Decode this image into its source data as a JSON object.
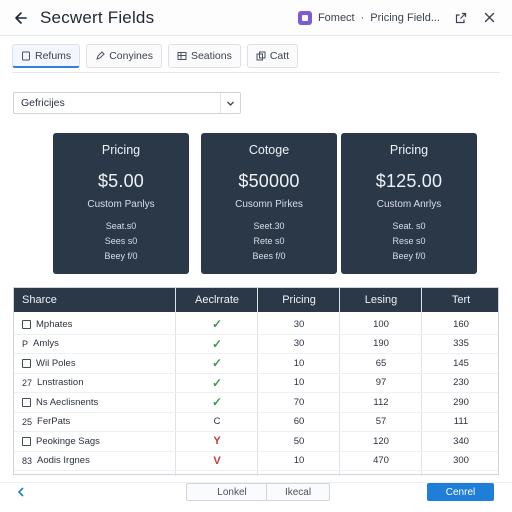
{
  "window": {
    "title": "Secwert Fields",
    "context_left": "Fomect",
    "separator": "·",
    "context_right": "Pricing Field..."
  },
  "tabs": [
    {
      "label": "Refums",
      "icon": "file-icon",
      "active": true
    },
    {
      "label": "Conyines",
      "icon": "edit-icon",
      "active": false
    },
    {
      "label": "Seations",
      "icon": "table-icon",
      "active": false
    },
    {
      "label": "Catt",
      "icon": "copy-icon",
      "active": false
    }
  ],
  "filter": {
    "value": "Gefricijes"
  },
  "cards": [
    {
      "title": "Pricing",
      "price": "$5.00",
      "subtitle": "Custom Panlys",
      "lines": [
        "Seat.s0",
        "Sees s0",
        "Beey f/0"
      ]
    },
    {
      "title": "Cotoge",
      "price": "$50000",
      "subtitle": "Cusomn Pirkes",
      "lines": [
        "Seet.30",
        "Rete s0",
        "Bees f/0"
      ]
    },
    {
      "title": "Pricing",
      "price": "$125.00",
      "subtitle": "Custom Anrlys",
      "lines": [
        "Seat. s0",
        "Rese s0",
        "Beey f/0"
      ]
    }
  ],
  "table": {
    "headers": [
      "Sharce",
      "Aeclrrate",
      "Pricing",
      "Lesing",
      "Tert"
    ],
    "rows": [
      {
        "marker": "checkbox",
        "name": "Mphates",
        "status": "✓",
        "status_type": "ok",
        "pricing": "30",
        "lesing": "100",
        "tert": "160"
      },
      {
        "marker": "P",
        "name": "Amlys",
        "status": "✓",
        "status_type": "ok",
        "pricing": "30",
        "lesing": "190",
        "tert": "335"
      },
      {
        "marker": "checkbox",
        "name": "Wil Poles",
        "status": "✓",
        "status_type": "ok",
        "pricing": "10",
        "lesing": "65",
        "tert": "145"
      },
      {
        "marker": "27",
        "name": "Lnstrastion",
        "status": "✓",
        "status_type": "ok",
        "pricing": "10",
        "lesing": "97",
        "tert": "230"
      },
      {
        "marker": "checkbox",
        "name": "Ns Aeclisnents",
        "status": "✓",
        "status_type": "ok",
        "pricing": "70",
        "lesing": "112",
        "tert": "290"
      },
      {
        "marker": "25",
        "name": "FerPats",
        "status": "C",
        "status_type": "neutral",
        "pricing": "60",
        "lesing": "57",
        "tert": "111"
      },
      {
        "marker": "checkbox",
        "name": "Peokinge Sags",
        "status": "Y",
        "status_type": "warn",
        "pricing": "50",
        "lesing": "120",
        "tert": "340"
      },
      {
        "marker": "83",
        "name": "Aodis Irgnes",
        "status": "V",
        "status_type": "warn",
        "pricing": "10",
        "lesing": "470",
        "tert": "300"
      }
    ]
  },
  "footer": {
    "prev_icon": "chevron-left-icon",
    "btn1": "Lonkel",
    "btn2": "Ikecal",
    "primary": "Cenrel"
  },
  "colors": {
    "card_bg": "#2b3848",
    "header_bg": "#2b3848",
    "accent": "#1f7ed8",
    "ok": "#3a9a4a",
    "warn": "#c63b3b"
  }
}
